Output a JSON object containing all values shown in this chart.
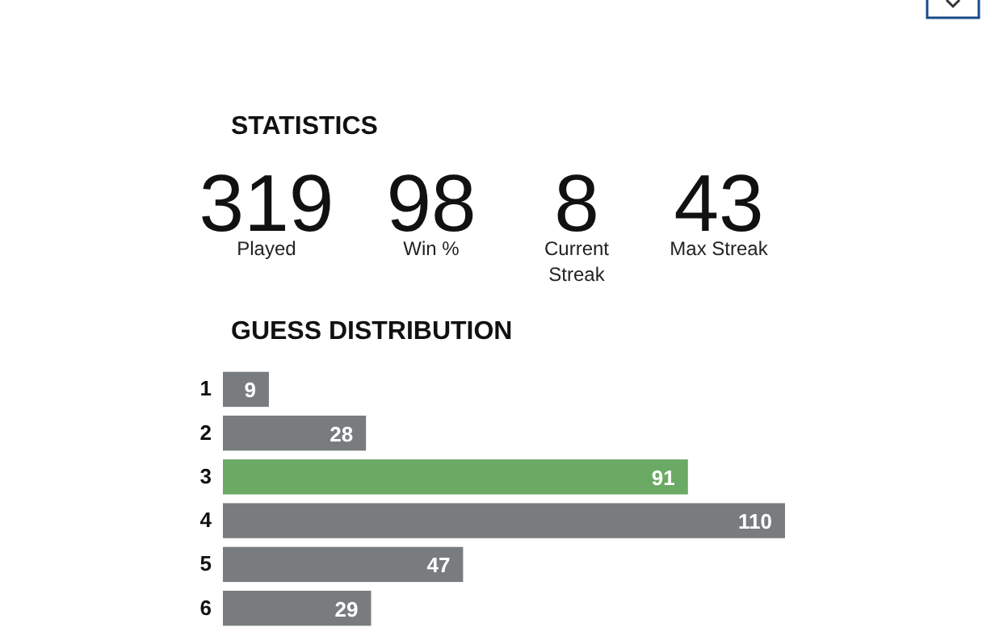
{
  "chart_data": [
    {
      "type": "other",
      "title": "STATISTICS",
      "annotations": [
        "319",
        "Played",
        "98",
        "Win %",
        "8",
        "Current Streak",
        "43",
        "Max Streak"
      ]
    },
    {
      "type": "bar",
      "title": "GUESS DISTRIBUTION",
      "orientation": "horizontal",
      "categories": [
        "1",
        "2",
        "3",
        "4",
        "5",
        "6"
      ],
      "values": [
        9,
        28,
        91,
        110,
        47,
        29
      ],
      "colors": [
        "#787c7e",
        "#787c7e",
        "#6aaa64",
        "#787c7e",
        "#787c7e",
        "#787c7e"
      ],
      "data_labels": true
    }
  ]
}
